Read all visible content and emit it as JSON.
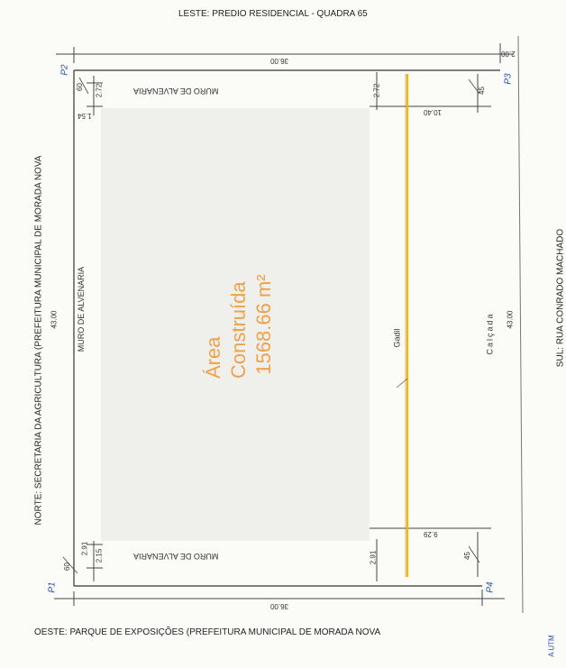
{
  "sides": {
    "east": "LESTE: PREDIO RESIDENCIAL - QUADRA 65",
    "north": "NORTE: SECRETARIA DA AGRICULTURA (PREFEITURA MUNICIPAL DE MORADA NOVA",
    "south": "SUL: RUA CONRADO MACHADO",
    "west": "OESTE: PARQUE DE EXPOSIÇÕES (PREFEITURA MUNICIPAL DE MORADA NOVA"
  },
  "area": {
    "label": "Área Construída",
    "value": "1568.66 m²"
  },
  "walls": {
    "top": "MURO DE ALVENARIA",
    "left": "MURO DE ALVENARIA",
    "bottom": "MURO DE ALVENARIA"
  },
  "other": {
    "gadil": "Gadil",
    "calcada": "Calçada"
  },
  "points": {
    "p1": "P1",
    "p2": "P2",
    "p3": "P3",
    "p4": "P4"
  },
  "dims": {
    "top_total": "36.00",
    "bottom_total": "36.00",
    "left_total": "43.00",
    "right_total": "43.00",
    "right_edge": "2.00",
    "top_left_a": "2.72",
    "top_left_b": "1.54",
    "top_left_c": "60",
    "top_right_a": "2.72",
    "top_right_b": "10.40",
    "top_right_c": "45",
    "bottom_left_a": "2.15",
    "bottom_left_b": "2.91",
    "bottom_left_c": "60",
    "bottom_right_a": "2.91",
    "bottom_right_b": "9.29",
    "bottom_right_c": "45"
  },
  "corner_text": "A UTM",
  "colors": {
    "gadil_line": "#f2b705",
    "area_text": "#f0a14a",
    "point_label": "#2a4dbb"
  }
}
